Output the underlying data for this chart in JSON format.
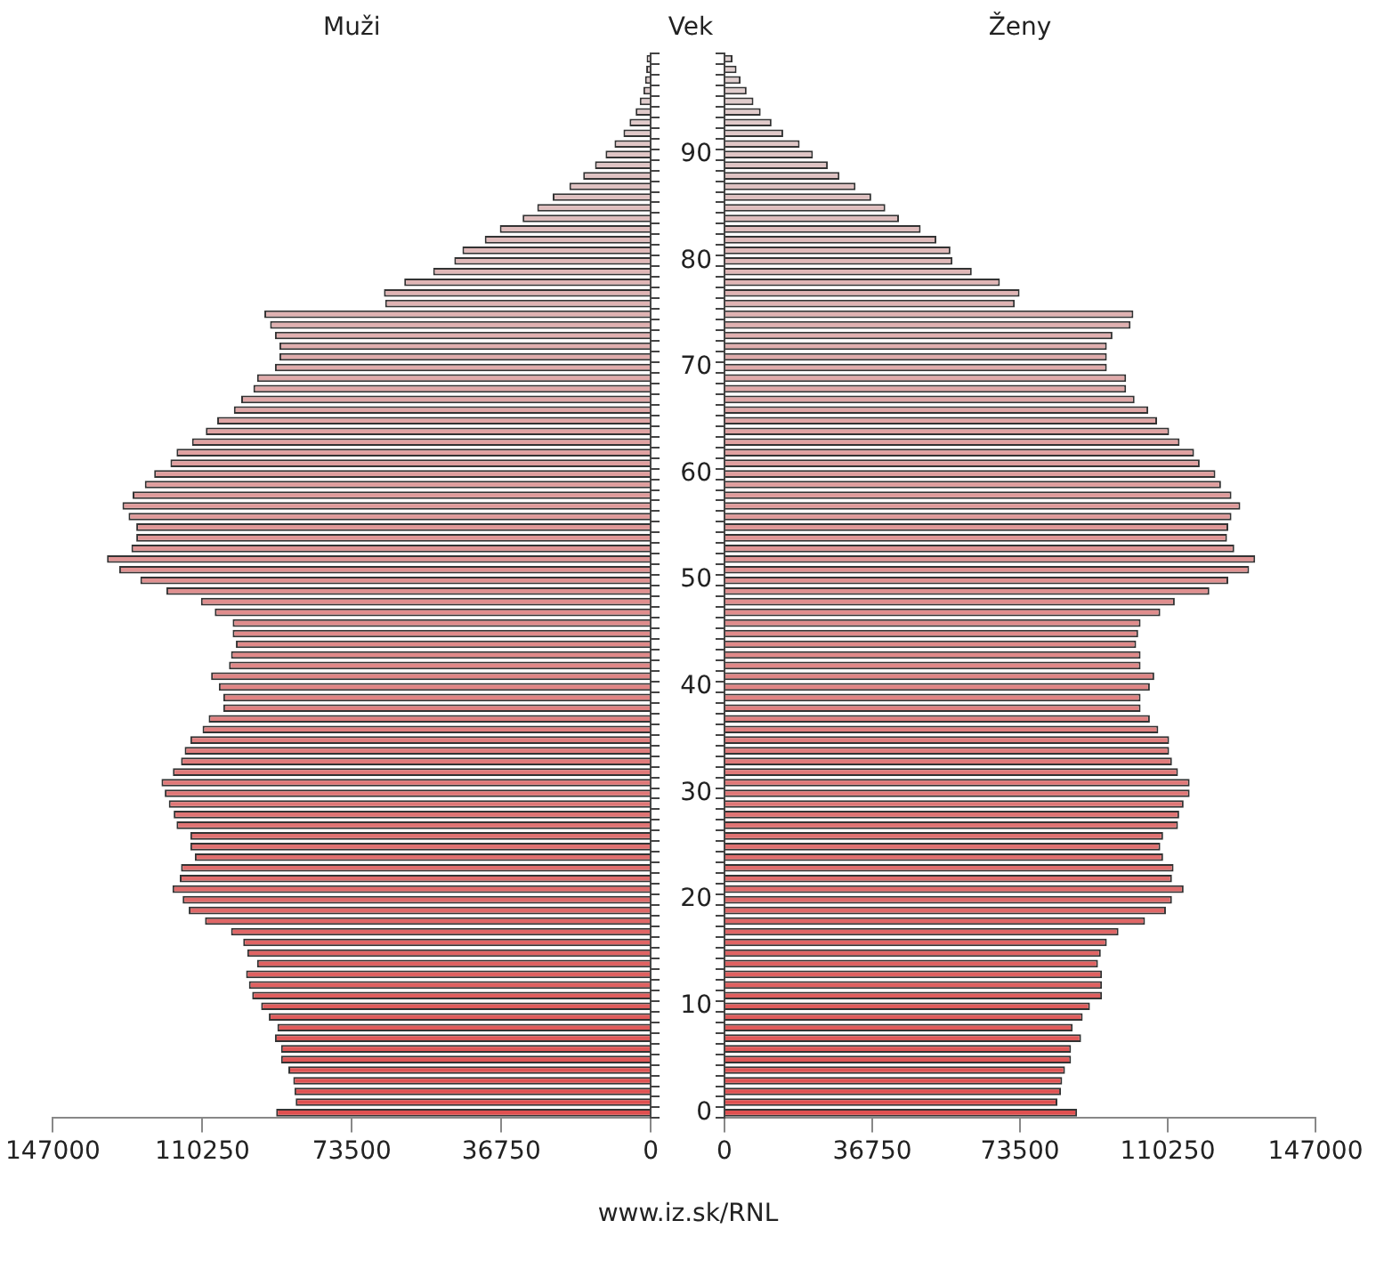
{
  "chart_data": [
    {
      "type": "bar",
      "orientation": "horizontal",
      "title": "Muži",
      "tick_labels": "x",
      "annotations": [
        "www.iz.sk/RNL"
      ],
      "categories": [
        null,
        null,
        null,
        null,
        null,
        null,
        null,
        null,
        null,
        "90",
        null,
        null,
        null,
        null,
        null,
        null,
        null,
        null,
        null,
        "80",
        null,
        null,
        null,
        null,
        null,
        null,
        null,
        null,
        null,
        "70",
        null,
        null,
        null,
        null,
        null,
        null,
        null,
        null,
        null,
        "60",
        null,
        null,
        null,
        null,
        null,
        null,
        null,
        null,
        null,
        "50",
        null,
        null,
        null,
        null,
        null,
        null,
        null,
        null,
        null,
        "40",
        null,
        null,
        null,
        null,
        null,
        null,
        null,
        null,
        null,
        "30",
        null,
        null,
        null,
        null,
        null,
        null,
        null,
        null,
        null,
        "20",
        null,
        null,
        null,
        null,
        null,
        null,
        null,
        null,
        null,
        "10",
        null,
        null,
        null,
        null,
        null,
        null,
        null,
        null,
        null,
        "0"
      ],
      "values": [
        1000,
        1100,
        1400,
        1800,
        2700,
        3700,
        5200,
        6700,
        8900,
        11100,
        13700,
        16600,
        20000,
        24100,
        27900,
        31500,
        37100,
        40800,
        46300,
        48300,
        53500,
        60600,
        65600,
        65300,
        95000,
        93600,
        92400,
        91300,
        91300,
        92400,
        96800,
        97700,
        100700,
        102500,
        106600,
        109400,
        112800,
        116600,
        118100,
        122100,
        124400,
        127400,
        129900,
        128400,
        126500,
        126500,
        127700,
        133700,
        130700,
        125500,
        119100,
        110600,
        107200,
        102800,
        102800,
        102000,
        103200,
        103700,
        108100,
        106200,
        105100,
        105100,
        108700,
        110200,
        113200,
        114600,
        115500,
        117500,
        120300,
        119500,
        118500,
        117300,
        116600,
        113200,
        113200,
        112100,
        115500,
        115800,
        117600,
        115100,
        113600,
        109600,
        103200,
        100200,
        99200,
        96800,
        99500,
        98800,
        98000,
        95800,
        93900,
        91800,
        92400,
        90900,
        90900,
        89100,
        87900,
        87600,
        87300,
        92100
      ],
      "colors": [
        "#e0d1d1",
        "#e0cfcf",
        "#e0cece",
        "#e0cdcd",
        "#e0cccc",
        "#e0caca",
        "#e0c9c9",
        "#e0c8c8",
        "#e0c6c6",
        "#e0c5c5",
        "#e0c4c4",
        "#e0c2c2",
        "#e0c1c1",
        "#e0c0c0",
        "#e0bebe",
        "#e0bdbd",
        "#e0bcbc",
        "#e0bbbb",
        "#e0b9b9",
        "#e0b8b8",
        "#e0b7b7",
        "#e0b5b5",
        "#e0b4b4",
        "#e0b3b3",
        "#e0b2b2",
        "#e0b0b0",
        "#e0afaf",
        "#e0aeae",
        "#e0acac",
        "#e0abab",
        "#e0aaaa",
        "#e0a8a8",
        "#e0a7a7",
        "#e0a6a6",
        "#e0a5a5",
        "#e0a3a3",
        "#e0a2a2",
        "#e0a1a1",
        "#e09f9f",
        "#e09e9e",
        "#e09d9d",
        "#e09b9b",
        "#e09a9a",
        "#e09999",
        "#e09898",
        "#e09696",
        "#e09595",
        "#e09494",
        "#e09292",
        "#e09191",
        "#e09090",
        "#e08e8e",
        "#e08d8d",
        "#e08c8c",
        "#e08b8b",
        "#e08989",
        "#e08888",
        "#e08787",
        "#e08585",
        "#e08484",
        "#e08383",
        "#e08181",
        "#e08080",
        "#e07f7f",
        "#e07e7e",
        "#e07c7c",
        "#e07b7b",
        "#e07a7a",
        "#e07878",
        "#e07777",
        "#e07676",
        "#e07474",
        "#e07373",
        "#e07272",
        "#e07171",
        "#e06f6f",
        "#e06e6e",
        "#e06d6d",
        "#e06b6b",
        "#e06a6a",
        "#e06969",
        "#e06767",
        "#e06666",
        "#e06565",
        "#e06464",
        "#e06262",
        "#e06161",
        "#e06060",
        "#e05e5e",
        "#e05d5d",
        "#e05c5c",
        "#e05a5a",
        "#e05959",
        "#e05858",
        "#e05757",
        "#e05555",
        "#e05454",
        "#e05353",
        "#e05151",
        "#e05050"
      ],
      "xlim": [
        147000,
        0
      ],
      "xticks": [
        147000,
        110250,
        73500,
        36750,
        0
      ]
    },
    {
      "type": "bar",
      "orientation": "horizontal",
      "title": "Ženy",
      "ylabel": "Vek",
      "categories": [
        null,
        null,
        null,
        null,
        null,
        null,
        null,
        null,
        null,
        "90",
        null,
        null,
        null,
        null,
        null,
        null,
        null,
        null,
        null,
        "80",
        null,
        null,
        null,
        null,
        null,
        null,
        null,
        null,
        null,
        "70",
        null,
        null,
        null,
        null,
        null,
        null,
        null,
        null,
        null,
        "60",
        null,
        null,
        null,
        null,
        null,
        null,
        null,
        null,
        null,
        "50",
        null,
        null,
        null,
        null,
        null,
        null,
        null,
        null,
        null,
        "40",
        null,
        null,
        null,
        null,
        null,
        null,
        null,
        null,
        null,
        "30",
        null,
        null,
        null,
        null,
        null,
        null,
        null,
        null,
        null,
        "20",
        null,
        null,
        null,
        null,
        null,
        null,
        null,
        null,
        null,
        "10",
        null,
        null,
        null,
        null,
        null,
        null,
        null,
        null,
        null,
        "0"
      ],
      "values": [
        2000,
        3000,
        4000,
        5500,
        7200,
        9000,
        11700,
        14600,
        18700,
        22000,
        25700,
        28600,
        32600,
        36500,
        40000,
        43400,
        48800,
        52700,
        56200,
        56700,
        61500,
        68500,
        73400,
        72200,
        101700,
        101000,
        96500,
        95100,
        95100,
        95100,
        99900,
        99900,
        102000,
        105400,
        107600,
        110600,
        113200,
        116800,
        118200,
        122100,
        123500,
        126100,
        128300,
        126100,
        125300,
        125000,
        126800,
        132000,
        130500,
        125300,
        120600,
        112000,
        108400,
        103500,
        102900,
        102400,
        103500,
        103500,
        106900,
        105800,
        103500,
        103500,
        105800,
        107900,
        110600,
        110600,
        111300,
        112800,
        115700,
        115700,
        114200,
        113100,
        112800,
        109100,
        108400,
        109100,
        111700,
        111300,
        114200,
        111300,
        109800,
        104600,
        98000,
        95100,
        93600,
        92900,
        93900,
        93900,
        93900,
        90900,
        89100,
        86600,
        88700,
        86200,
        86200,
        84700,
        84000,
        83700,
        82800,
        87700
      ],
      "colors": [
        "#e0d1d1",
        "#e0cfcf",
        "#e0cece",
        "#e0cdcd",
        "#e0cccc",
        "#e0caca",
        "#e0c9c9",
        "#e0c8c8",
        "#e0c6c6",
        "#e0c5c5",
        "#e0c4c4",
        "#e0c2c2",
        "#e0c1c1",
        "#e0c0c0",
        "#e0bebe",
        "#e0bdbd",
        "#e0bcbc",
        "#e0bbbb",
        "#e0b9b9",
        "#e0b8b8",
        "#e0b7b7",
        "#e0b5b5",
        "#e0b4b4",
        "#e0b3b3",
        "#e0b2b2",
        "#e0b0b0",
        "#e0afaf",
        "#e0aeae",
        "#e0acac",
        "#e0abab",
        "#e0aaaa",
        "#e0a8a8",
        "#e0a7a7",
        "#e0a6a6",
        "#e0a5a5",
        "#e0a3a3",
        "#e0a2a2",
        "#e0a1a1",
        "#e09f9f",
        "#e09e9e",
        "#e09d9d",
        "#e09b9b",
        "#e09a9a",
        "#e09999",
        "#e09898",
        "#e09696",
        "#e09595",
        "#e09494",
        "#e09292",
        "#e09191",
        "#e09090",
        "#e08e8e",
        "#e08d8d",
        "#e08c8c",
        "#e08b8b",
        "#e08989",
        "#e08888",
        "#e08787",
        "#e08585",
        "#e08484",
        "#e08383",
        "#e08181",
        "#e08080",
        "#e07f7f",
        "#e07e7e",
        "#e07c7c",
        "#e07b7b",
        "#e07a7a",
        "#e07878",
        "#e07777",
        "#e07676",
        "#e07474",
        "#e07373",
        "#e07272",
        "#e07171",
        "#e06f6f",
        "#e06e6e",
        "#e06d6d",
        "#e06b6b",
        "#e06a6a",
        "#e06969",
        "#e06767",
        "#e06666",
        "#e06565",
        "#e06464",
        "#e06262",
        "#e06161",
        "#e06060",
        "#e05e5e",
        "#e05d5d",
        "#e05c5c",
        "#e05a5a",
        "#e05959",
        "#e05858",
        "#e05757",
        "#e05555",
        "#e05454",
        "#e05353",
        "#e05151",
        "#e05050"
      ],
      "xlim": [
        0,
        147000
      ],
      "xticks": [
        0,
        36750,
        73500,
        110250,
        147000
      ]
    }
  ]
}
